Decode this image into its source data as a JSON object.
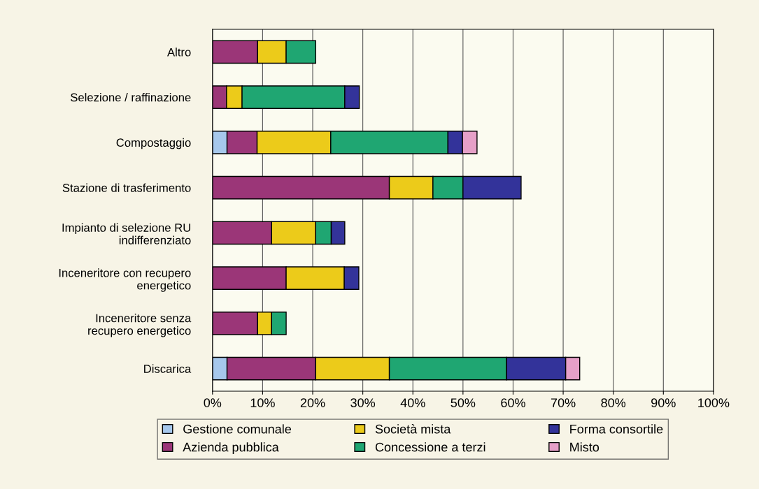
{
  "chart_data": {
    "type": "bar",
    "orientation": "horizontal",
    "stacked": true,
    "categories": [
      "Altro",
      "Selezione / raffinazione",
      "Compostaggio",
      "Stazione di trasferimento",
      "Impianto di selezione RU\nindifferenziato",
      "Inceneritore con recupero\nenergetico",
      "Inceneritore senza\nrecupero energetico",
      "Discarica"
    ],
    "series": [
      {
        "name": "Gestione comunale",
        "color": "#a6c8ec",
        "values": [
          null,
          null,
          2.9,
          null,
          null,
          null,
          null,
          2.9
        ]
      },
      {
        "name": "Azienda pubblica",
        "color": "#9b3678",
        "values": [
          9.0,
          2.8,
          6.0,
          35.3,
          11.8,
          14.7,
          9.0,
          17.7
        ]
      },
      {
        "name": "Società mista",
        "color": "#eccb1a",
        "values": [
          5.7,
          3.1,
          14.7,
          8.7,
          8.8,
          11.6,
          2.8,
          14.7
        ]
      },
      {
        "name": "Concessione a terzi",
        "color": "#1fa672",
        "values": [
          5.9,
          20.5,
          23.4,
          6.0,
          3.1,
          null,
          2.9,
          23.4
        ]
      },
      {
        "name": "Forma consortile",
        "color": "#33339a",
        "values": [
          null,
          2.9,
          2.9,
          11.6,
          2.7,
          2.9,
          null,
          11.8
        ]
      },
      {
        "name": "Misto",
        "color": "#e6a0c8",
        "values": [
          null,
          null,
          2.9,
          null,
          null,
          null,
          null,
          2.8
        ]
      }
    ],
    "xlim": [
      0,
      100
    ],
    "xticks": [
      {
        "value": 0,
        "label": "0%"
      },
      {
        "value": 10,
        "label": "10%"
      },
      {
        "value": 20,
        "label": "20%"
      },
      {
        "value": 30,
        "label": "30%"
      },
      {
        "value": 40,
        "label": "40%"
      },
      {
        "value": 50,
        "label": "50%"
      },
      {
        "value": 60,
        "label": "60%"
      },
      {
        "value": 70,
        "label": "70%"
      },
      {
        "value": 80,
        "label": "80%"
      },
      {
        "value": 90,
        "label": "90%"
      },
      {
        "value": 100,
        "label": "100%"
      }
    ],
    "grid": "x",
    "legend": "bottom"
  }
}
